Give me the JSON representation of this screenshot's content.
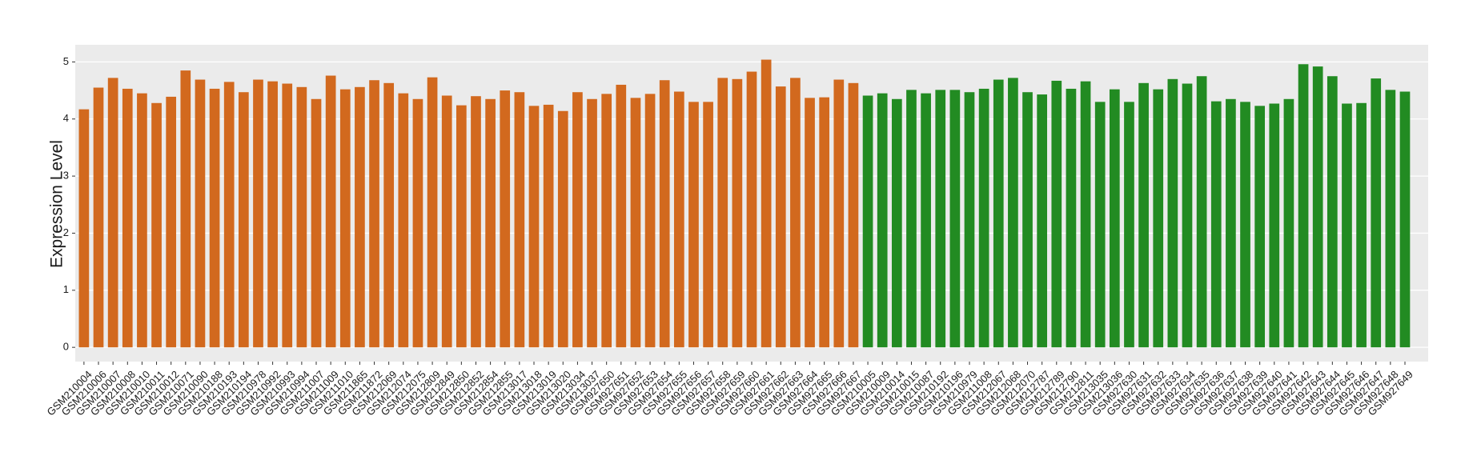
{
  "chart_data": {
    "type": "bar",
    "y_label": "Expression Level",
    "categories": [
      "GSM210004",
      "GSM210006",
      "GSM210007",
      "GSM210008",
      "GSM210010",
      "GSM210011",
      "GSM210012",
      "GSM210071",
      "GSM210090",
      "GSM210188",
      "GSM210193",
      "GSM210194",
      "GSM210978",
      "GSM210992",
      "GSM210993",
      "GSM210994",
      "GSM211007",
      "GSM211009",
      "GSM211010",
      "GSM211865",
      "GSM211872",
      "GSM212069",
      "GSM212074",
      "GSM212075",
      "GSM212809",
      "GSM212849",
      "GSM212850",
      "GSM212852",
      "GSM212854",
      "GSM212855",
      "GSM213017",
      "GSM213018",
      "GSM213019",
      "GSM213020",
      "GSM213034",
      "GSM213037",
      "GSM927650",
      "GSM927651",
      "GSM927652",
      "GSM927653",
      "GSM927654",
      "GSM927655",
      "GSM927656",
      "GSM927657",
      "GSM927658",
      "GSM927659",
      "GSM927660",
      "GSM927661",
      "GSM927662",
      "GSM927663",
      "GSM927664",
      "GSM927665",
      "GSM927666",
      "GSM927667",
      "GSM210005",
      "GSM210009",
      "GSM210014",
      "GSM210015",
      "GSM210087",
      "GSM210192",
      "GSM210196",
      "GSM210979",
      "GSM211008",
      "GSM212067",
      "GSM212068",
      "GSM212070",
      "GSM212787",
      "GSM212789",
      "GSM212790",
      "GSM212811",
      "GSM213035",
      "GSM213036",
      "GSM927630",
      "GSM927631",
      "GSM927632",
      "GSM927633",
      "GSM927634",
      "GSM927635",
      "GSM927636",
      "GSM927637",
      "GSM927638",
      "GSM927639",
      "GSM927640",
      "GSM927641",
      "GSM927642",
      "GSM927643",
      "GSM927644",
      "GSM927645",
      "GSM927646",
      "GSM927647",
      "GSM927648",
      "GSM927649"
    ],
    "values": [
      4.17,
      4.55,
      4.72,
      4.53,
      4.45,
      4.28,
      4.39,
      4.85,
      4.69,
      4.53,
      4.65,
      4.47,
      4.69,
      4.66,
      4.62,
      4.56,
      4.35,
      4.76,
      4.52,
      4.56,
      4.68,
      4.63,
      4.45,
      4.35,
      4.73,
      4.41,
      4.24,
      4.4,
      4.35,
      4.5,
      4.47,
      4.23,
      4.25,
      4.14,
      4.47,
      4.35,
      4.44,
      4.6,
      4.37,
      4.44,
      4.68,
      4.48,
      4.3,
      4.3,
      4.72,
      4.7,
      4.83,
      5.04,
      4.57,
      4.72,
      4.37,
      4.38,
      4.69,
      4.63,
      4.41,
      4.45,
      4.35,
      4.51,
      4.45,
      4.51,
      4.51,
      4.47,
      4.53,
      4.69,
      4.72,
      4.47,
      4.43,
      4.67,
      4.53,
      4.66,
      4.3,
      4.52,
      4.3,
      4.63,
      4.52,
      4.7,
      4.62,
      4.75,
      4.31,
      4.35,
      4.3,
      4.23,
      4.27,
      4.35,
      4.96,
      4.92,
      4.75,
      4.27,
      4.28,
      4.71,
      4.51,
      4.48
    ],
    "colors": [
      "#d2691e",
      "#d2691e",
      "#d2691e",
      "#d2691e",
      "#d2691e",
      "#d2691e",
      "#d2691e",
      "#d2691e",
      "#d2691e",
      "#d2691e",
      "#d2691e",
      "#d2691e",
      "#d2691e",
      "#d2691e",
      "#d2691e",
      "#d2691e",
      "#d2691e",
      "#d2691e",
      "#d2691e",
      "#d2691e",
      "#d2691e",
      "#d2691e",
      "#d2691e",
      "#d2691e",
      "#d2691e",
      "#d2691e",
      "#d2691e",
      "#d2691e",
      "#d2691e",
      "#d2691e",
      "#d2691e",
      "#d2691e",
      "#d2691e",
      "#d2691e",
      "#d2691e",
      "#d2691e",
      "#d2691e",
      "#d2691e",
      "#d2691e",
      "#d2691e",
      "#d2691e",
      "#d2691e",
      "#d2691e",
      "#d2691e",
      "#d2691e",
      "#d2691e",
      "#d2691e",
      "#d2691e",
      "#d2691e",
      "#d2691e",
      "#d2691e",
      "#d2691e",
      "#d2691e",
      "#d2691e",
      "#228b22",
      "#228b22",
      "#228b22",
      "#228b22",
      "#228b22",
      "#228b22",
      "#228b22",
      "#228b22",
      "#228b22",
      "#228b22",
      "#228b22",
      "#228b22",
      "#228b22",
      "#228b22",
      "#228b22",
      "#228b22",
      "#228b22",
      "#228b22",
      "#228b22",
      "#228b22",
      "#228b22",
      "#228b22",
      "#228b22",
      "#228b22",
      "#228b22",
      "#228b22",
      "#228b22",
      "#228b22",
      "#228b22",
      "#228b22",
      "#228b22",
      "#228b22",
      "#228b22",
      "#228b22",
      "#228b22",
      "#228b22",
      "#228b22",
      "#228b22"
    ],
    "ylim": [
      -0.25,
      5.3
    ],
    "yticks": [
      0,
      1,
      2,
      3,
      4,
      5
    ],
    "grid": true,
    "panel_color": "#ebebeb"
  }
}
